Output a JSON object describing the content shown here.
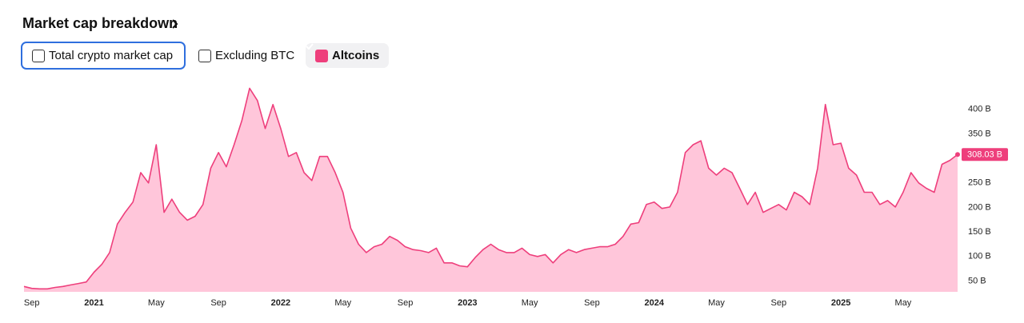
{
  "header": {
    "title": "Market cap breakdown"
  },
  "filters": [
    {
      "label": "Total crypto market cap",
      "checked": false
    },
    {
      "label": "Excluding BTC",
      "checked": false
    },
    {
      "label": "Altcoins",
      "checked": true
    }
  ],
  "chart_data": {
    "type": "area",
    "categories": [
      null,
      "Sep",
      null,
      null,
      null,
      null,
      null,
      null,
      null,
      "2021",
      null,
      null,
      null,
      null,
      null,
      null,
      null,
      "May",
      null,
      null,
      null,
      null,
      null,
      null,
      null,
      "Sep",
      null,
      null,
      null,
      null,
      null,
      null,
      null,
      "2022",
      null,
      null,
      null,
      null,
      null,
      null,
      null,
      "May",
      null,
      null,
      null,
      null,
      null,
      null,
      null,
      "Sep",
      null,
      null,
      null,
      null,
      null,
      null,
      null,
      "2023",
      null,
      null,
      null,
      null,
      null,
      null,
      null,
      "May",
      null,
      null,
      null,
      null,
      null,
      null,
      null,
      "Sep",
      null,
      null,
      null,
      null,
      null,
      null,
      null,
      "2024",
      null,
      null,
      null,
      null,
      null,
      null,
      null,
      "May",
      null,
      null,
      null,
      null,
      null,
      null,
      null,
      "Sep",
      null,
      null,
      null,
      null,
      null,
      null,
      null,
      "2025",
      null,
      null,
      null,
      null,
      null,
      null,
      null,
      "May",
      null,
      null,
      null,
      null,
      null,
      null,
      null
    ],
    "series": [
      {
        "name": "Altcoins",
        "color": "#ee3f7c",
        "fill": "#ffc6da",
        "values": [
          39,
          35,
          34,
          34,
          37,
          39,
          42,
          45,
          48,
          68,
          84,
          108,
          166,
          190,
          211,
          271,
          250,
          328,
          190,
          217,
          190,
          174,
          182,
          206,
          280,
          312,
          283,
          328,
          377,
          443,
          418,
          361,
          410,
          361,
          304,
          312,
          271,
          255,
          304,
          304,
          271,
          231,
          158,
          125,
          108,
          120,
          125,
          141,
          133,
          120,
          114,
          112,
          108,
          117,
          87,
          87,
          81,
          79,
          98,
          114,
          125,
          114,
          108,
          108,
          117,
          104,
          100,
          104,
          87,
          104,
          114,
          108,
          114,
          117,
          120,
          120,
          125,
          141,
          166,
          169,
          206,
          211,
          198,
          201,
          231,
          312,
          328,
          336,
          280,
          266,
          280,
          271,
          239,
          206,
          231,
          190,
          198,
          206,
          195,
          231,
          222,
          206,
          280,
          410,
          328,
          331,
          280,
          266,
          231,
          231,
          206,
          214,
          201,
          231,
          271,
          250,
          239,
          231,
          288,
          296,
          308.03
        ],
        "last_value_label": "308.03 B"
      }
    ],
    "ylim": [
      28,
      460
    ],
    "yticks": [
      {
        "value": 50,
        "label": "50 B"
      },
      {
        "value": 100,
        "label": "100 B"
      },
      {
        "value": 150,
        "label": "150 B"
      },
      {
        "value": 200,
        "label": "200 B"
      },
      {
        "value": 250,
        "label": "250 B"
      },
      {
        "value": 300,
        "label": "300 B"
      },
      {
        "value": 350,
        "label": "350 B"
      },
      {
        "value": 400,
        "label": "400 B"
      }
    ],
    "grid": false
  }
}
